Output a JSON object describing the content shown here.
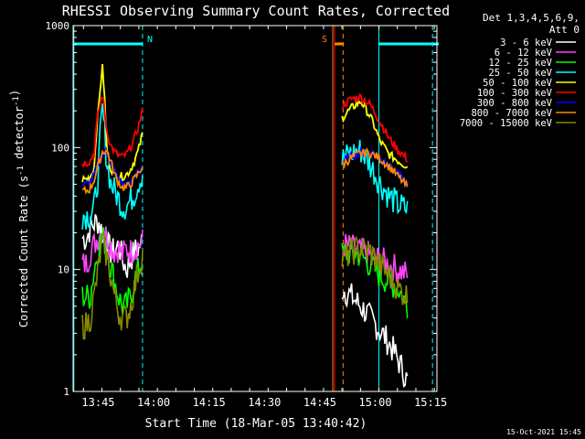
{
  "chart_data": {
    "type": "line",
    "title": "RHESSI Observing Summary Count Rates, Corrected",
    "xlabel": "Start Time (18-Mar-05 13:40:42)",
    "ylabel": "Corrected Count Rate (s-1 detector-1)",
    "ylabel_parts": {
      "base": "Corrected Count Rate (s",
      "sup1": "-1",
      "mid": " detector",
      "sup2": "-1",
      "end": ")"
    },
    "x_range_min": [
      -2.5,
      96
    ],
    "x_ticks": [
      {
        "label": "13:45",
        "min": 4.3
      },
      {
        "label": "14:00",
        "min": 19.3
      },
      {
        "label": "14:15",
        "min": 34.3
      },
      {
        "label": "14:30",
        "min": 49.3
      },
      {
        "label": "14:45",
        "min": 64.3
      },
      {
        "label": "15:00",
        "min": 79.3
      },
      {
        "label": "15:15",
        "min": 94.3
      }
    ],
    "y_scale": "log",
    "ylim": [
      1,
      1000
    ],
    "y_ticks": [
      "1",
      "10",
      "100",
      "1000"
    ],
    "legend": {
      "header": [
        "Det 1,3,4,5,6,9,",
        "Att 0"
      ],
      "placement": "right"
    },
    "series": [
      {
        "name": "3 - 6 keV",
        "color": "#ffffff",
        "pre": [
          18,
          18,
          22,
          24,
          25,
          20,
          17,
          14,
          14,
          16,
          12,
          10,
          12,
          14,
          15,
          17
        ],
        "post": [
          7,
          6,
          5,
          4,
          3.2,
          2.5,
          1.8,
          1.2
        ]
      },
      {
        "name": "6 - 12 keV",
        "color": "#ff44ff",
        "pre": [
          11,
          11,
          14,
          16,
          19,
          21,
          19,
          16,
          14,
          15,
          13,
          15,
          14,
          15,
          16,
          17
        ],
        "post": [
          16,
          15,
          14,
          13,
          12,
          11,
          10,
          9
        ]
      },
      {
        "name": "12 - 25 keV",
        "color": "#00ff00",
        "pre": [
          6,
          6,
          6,
          10,
          15,
          19,
          15,
          11,
          8,
          6,
          5,
          5,
          6,
          8,
          10,
          12
        ],
        "post": [
          13,
          14,
          13,
          11,
          9,
          8,
          7,
          5
        ]
      },
      {
        "name": "25 - 50 keV",
        "color": "#00ffff",
        "pre": [
          28,
          28,
          28,
          32,
          60,
          200,
          80,
          52,
          44,
          38,
          33,
          33,
          37,
          42,
          52,
          62
        ],
        "post": [
          80,
          90,
          95,
          72,
          52,
          40,
          34,
          31
        ]
      },
      {
        "name": "50 - 100 keV",
        "color": "#ffff00",
        "pre": [
          55,
          55,
          58,
          70,
          200,
          450,
          100,
          68,
          62,
          58,
          58,
          60,
          66,
          78,
          95,
          130
        ],
        "post": [
          175,
          210,
          240,
          180,
          115,
          88,
          78,
          70
        ]
      },
      {
        "name": "100 - 300 keV",
        "color": "#ff0000",
        "pre": [
          75,
          75,
          78,
          92,
          200,
          270,
          140,
          105,
          92,
          86,
          84,
          88,
          100,
          118,
          150,
          200
        ],
        "post": [
          220,
          250,
          260,
          225,
          165,
          120,
          95,
          80
        ]
      },
      {
        "name": "300 - 800 keV",
        "color": "#0000ff",
        "pre": [
          50,
          50,
          52,
          60,
          75,
          90,
          92,
          78,
          62,
          55,
          50,
          50,
          52,
          56,
          63,
          72
        ],
        "post": [
          75,
          85,
          92,
          92,
          85,
          72,
          60,
          50
        ]
      },
      {
        "name": "800 - 7000 keV",
        "color": "#ff8800",
        "pre": [
          44,
          44,
          46,
          55,
          72,
          92,
          95,
          78,
          60,
          52,
          47,
          47,
          50,
          55,
          62,
          70
        ],
        "post": [
          72,
          82,
          90,
          90,
          82,
          70,
          58,
          47
        ]
      },
      {
        "name": "7000 - 15000 keV",
        "color": "#888800",
        "pre": [
          3.5,
          3.5,
          4,
          6,
          10,
          17,
          13,
          9,
          6,
          4.5,
          4,
          4,
          5,
          7,
          10,
          13
        ],
        "post": [
          12,
          14,
          15,
          14,
          11,
          9,
          7,
          6
        ]
      }
    ],
    "pre_x_min": [
      0,
      16.3
    ],
    "post_x_min": [
      70.3,
      88
    ],
    "annotations": [
      {
        "label": "N",
        "color": "#00ffff",
        "start_min": 16.3,
        "end_min": 96.5,
        "bar_segments": [
          [
            -2.5,
            16.3
          ],
          [
            80.3,
            96.5
          ]
        ]
      },
      {
        "label": "S",
        "color": "#ff8800",
        "start_min": 67.8,
        "end_min": 70.3,
        "bar_segments": [
          [
            68.3,
            70.8
          ]
        ]
      }
    ],
    "vertical_markers": [
      {
        "color": "#00ffff",
        "style": "dashed",
        "min": 16.3
      },
      {
        "color": "#00ffff",
        "style": "solid",
        "min": 80.3
      },
      {
        "color": "#00ffff",
        "style": "dashed",
        "min": 94.8
      },
      {
        "color": "#00ffff",
        "style": "solid",
        "min": -2.3
      },
      {
        "color": "#ff8800",
        "style": "solid",
        "min": 67.8
      },
      {
        "color": "#ff8800",
        "style": "dashed",
        "min": 70.6
      },
      {
        "color": "#ff0000",
        "style": "solid",
        "min": 68.3
      }
    ]
  },
  "timestamp": "15-Oct-2021 15:45"
}
